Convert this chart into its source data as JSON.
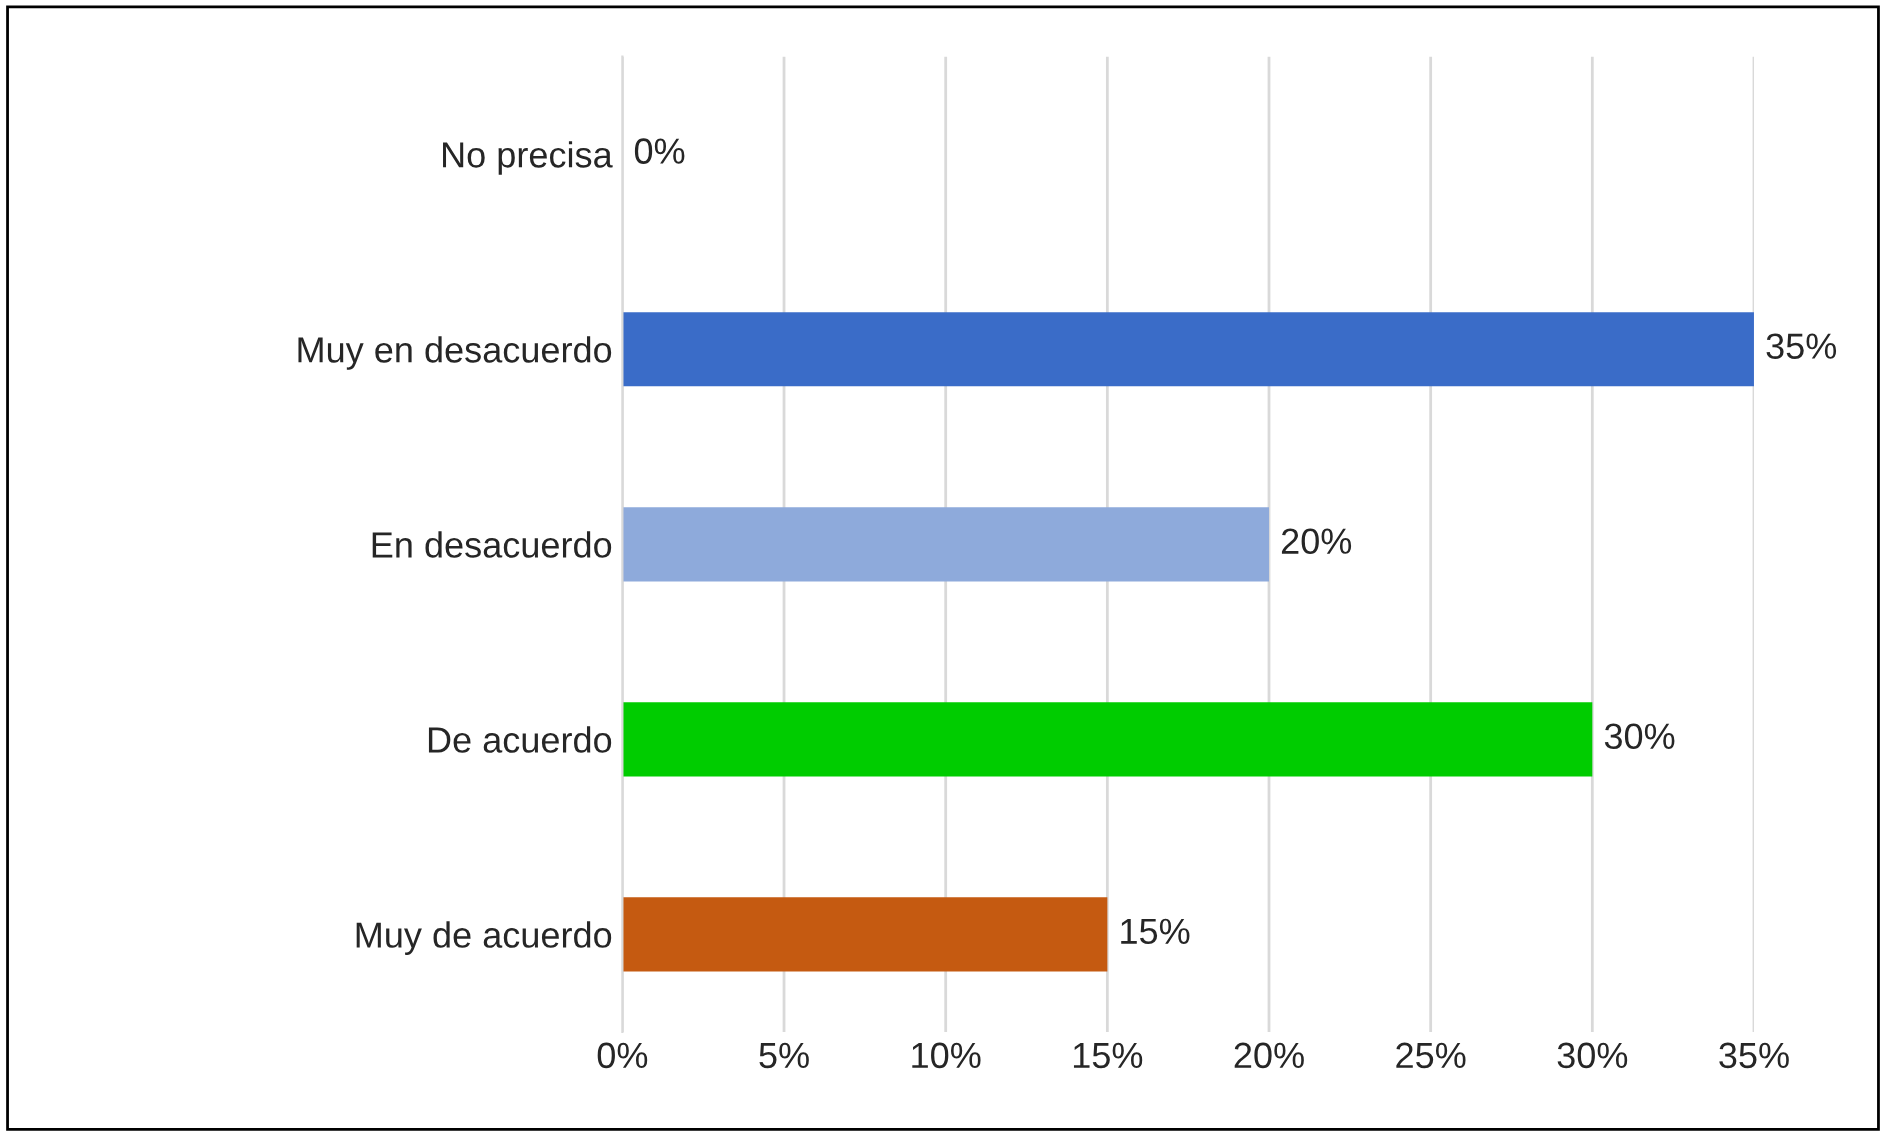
{
  "chart_data": {
    "type": "bar",
    "orientation": "horizontal",
    "categories": [
      "No precisa",
      "Muy en desacuerdo",
      "En desacuerdo",
      "De acuerdo",
      "Muy de acuerdo"
    ],
    "values": [
      0,
      35,
      20,
      30,
      15
    ],
    "colors": [
      "#1f3864",
      "#3a6cc8",
      "#8eaadb",
      "#00cc00",
      "#c55a11"
    ],
    "value_labels": [
      "0%",
      "35%",
      "20%",
      "30%",
      "15%"
    ],
    "xlim": [
      0,
      35
    ],
    "xticks": [
      {
        "value": 0,
        "label": "0%"
      },
      {
        "value": 5,
        "label": "5%"
      },
      {
        "value": 10,
        "label": "10%"
      },
      {
        "value": 15,
        "label": "15%"
      },
      {
        "value": 20,
        "label": "20%"
      },
      {
        "value": 25,
        "label": "25%"
      },
      {
        "value": 30,
        "label": "30%"
      },
      {
        "value": 35,
        "label": "35%"
      }
    ],
    "grid": "x",
    "legend": false
  }
}
